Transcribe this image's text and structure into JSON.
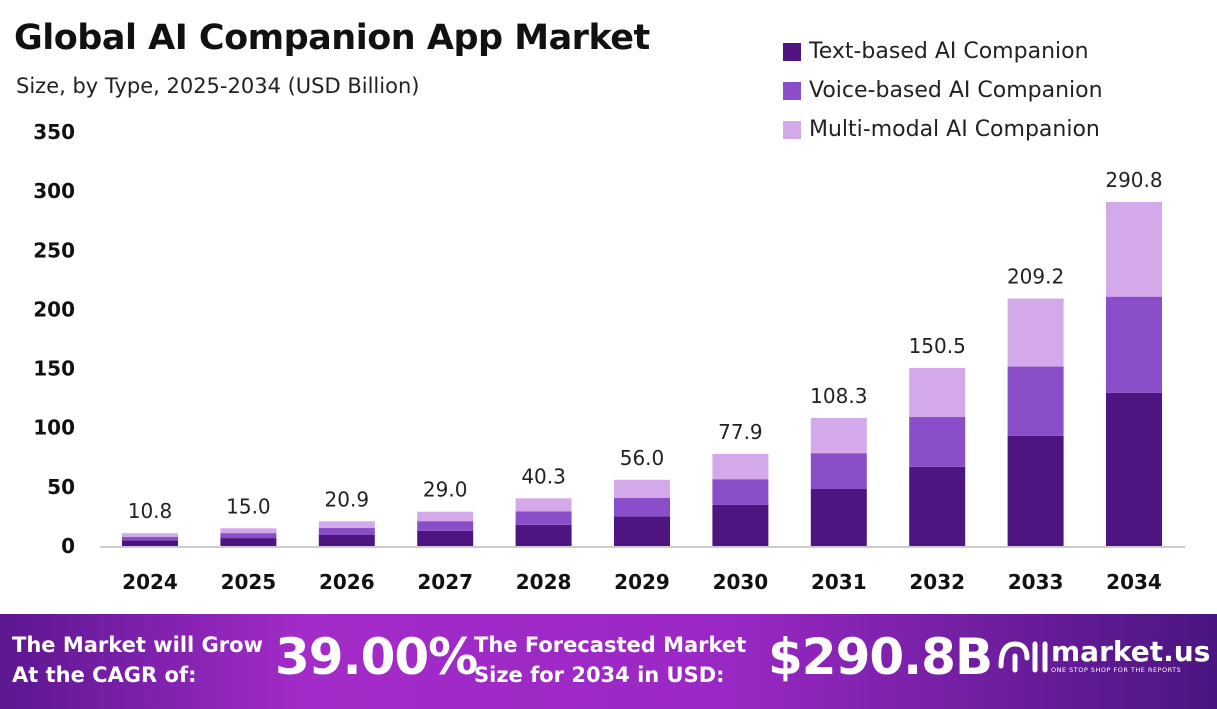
{
  "chart_data": {
    "type": "bar",
    "stacked": true,
    "title": "Global AI Companion App Market",
    "subtitle": "Size, by Type, 2025-2034 (USD Billion)",
    "categories": [
      "2024",
      "2025",
      "2026",
      "2027",
      "2028",
      "2029",
      "2030",
      "2031",
      "2032",
      "2033",
      "2034"
    ],
    "series": [
      {
        "name": "Text-based AI Companion",
        "color": "#4e1580",
        "values": [
          4.8,
          6.7,
          9.3,
          12.9,
          17.9,
          24.9,
          34.7,
          48.2,
          67.0,
          93.1,
          129.4
        ]
      },
      {
        "name": "Voice-based AI Companion",
        "color": "#8a4fc8",
        "values": [
          3.0,
          4.2,
          5.9,
          8.1,
          11.3,
          15.7,
          21.8,
          30.3,
          42.1,
          58.6,
          81.4
        ]
      },
      {
        "name": "Multi-modal AI Companion",
        "color": "#d3a9e9",
        "values": [
          3.0,
          4.1,
          5.7,
          8.0,
          11.1,
          15.4,
          21.4,
          29.8,
          41.4,
          57.5,
          80.0
        ]
      }
    ],
    "totals": [
      "10.8",
      "15.0",
      "20.9",
      "29.0",
      "40.3",
      "56.0",
      "77.9",
      "108.3",
      "150.5",
      "209.2",
      "290.8"
    ],
    "yticks": [
      0,
      50,
      100,
      150,
      200,
      250,
      300,
      350
    ],
    "ylim": [
      0,
      350
    ],
    "grid": false,
    "legend": "top-right"
  },
  "banner": {
    "cagr_label_1": "The Market will Grow",
    "cagr_label_2": "At the CAGR of:",
    "cagr_value": "39.00%",
    "forecast_label_1": "The Forecasted Market",
    "forecast_label_2": "Size for 2034 in USD:",
    "forecast_value": "$290.8B",
    "brand": "market.us",
    "tagline": "ONE STOP SHOP FOR THE REPORTS"
  }
}
